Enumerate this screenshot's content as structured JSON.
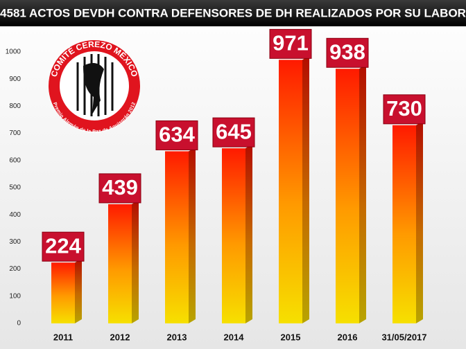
{
  "chart_data": {
    "type": "bar",
    "title": "4581 ACTOS DEVDH CONTRA DEFENSORES DE DH REALIZADOS POR SU LABOR",
    "categories": [
      "2011",
      "2012",
      "2013",
      "2014",
      "2015",
      "2016",
      "31/05/2017"
    ],
    "values": [
      224,
      439,
      634,
      645,
      971,
      938,
      730
    ],
    "color": "#ff2a00",
    "ylim": [
      0,
      1000
    ],
    "yticks": [
      0,
      100,
      200,
      300,
      400,
      500,
      600,
      700,
      800,
      900,
      1000
    ],
    "grid": false,
    "logo": {
      "name": "COMITÉ CEREZO MÉXICO",
      "award": "Premio Alemán de la Paz de Aquisgrán 2012"
    }
  }
}
